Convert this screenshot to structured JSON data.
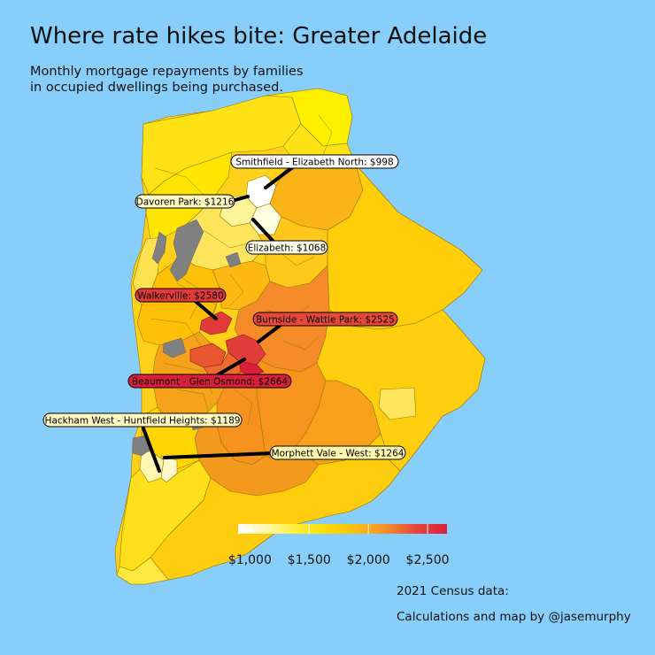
{
  "title": "Where rate hikes bite: Greater Adelaide",
  "subtitle": {
    "line1": "Monthly mortgage repayments by families",
    "line2": "in occupied dwellings being purchased."
  },
  "colors": {
    "sea": "#87CEFA",
    "no_data": "#808080",
    "scale": [
      "#FFFFFF",
      "#FFF59A",
      "#FFEE33",
      "#FFD700",
      "#FFC300",
      "#F9A51C",
      "#F48A28",
      "#EE6A2E",
      "#E8453A",
      "#DC1F3C"
    ]
  },
  "legend": {
    "tick_labels": [
      "$1,000",
      "$1,500",
      "$2,000",
      "$2,500"
    ],
    "ticks": [
      1000,
      1500,
      2000,
      2500
    ],
    "range": [
      900,
      2664
    ]
  },
  "callouts": [
    {
      "label": "Smithfield - Elizabeth North: $998",
      "value": 998
    },
    {
      "label": "Davoren Park: $1216",
      "value": 1216
    },
    {
      "label": "Elizabeth: $1068",
      "value": 1068
    },
    {
      "label": "Walkerville: $2580",
      "value": 2580
    },
    {
      "label": "Burnside - Wattle Park: $2525",
      "value": 2525
    },
    {
      "label": "Beaumont - Glen Osmond: $2664",
      "value": 2664
    },
    {
      "label": "Hackham West - Huntfield Heights: $1189",
      "value": 1189
    },
    {
      "label": "Morphett Vale - West: $1264",
      "value": 1264
    }
  ],
  "captions": {
    "census": "2021 Census data:",
    "credit": "Calculations and map by @jasemurphy"
  }
}
